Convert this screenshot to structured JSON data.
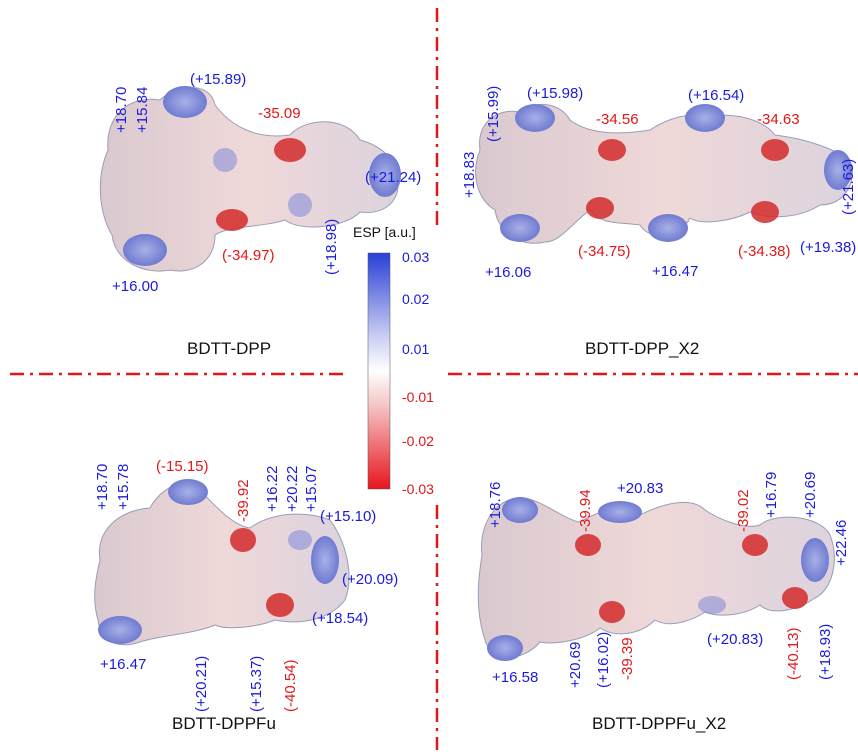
{
  "panels": [
    {
      "title": "BDTT-DPP",
      "labels": [
        "+18.70",
        "+15.84",
        "(+15.89)",
        "-35.09",
        "(+21.24)",
        "(+18.98)",
        "(-34.97)",
        "+16.00"
      ]
    },
    {
      "title": "BDTT-DPP_X2",
      "labels": [
        "+18.83",
        "(+15.99)",
        "(+15.98)",
        "-34.56",
        "(+16.54)",
        "-34.63",
        "(+21.63)",
        "(+19.38)",
        "(-34.38)",
        "+16.47",
        "(-34.75)",
        "+16.06"
      ]
    },
    {
      "title": "BDTT-DPPFu",
      "labels": [
        "+18.70",
        "+15.78",
        "(-15.15)",
        "-39.92",
        "+16.22",
        "+20.22",
        "+15.07",
        "(+15.10)",
        "(+20.09)",
        "(+18.54)",
        "(-40.54)",
        "(+15.37)",
        "(+20.21)",
        "+16.47"
      ]
    },
    {
      "title": "BDTT-DPPFu_X2",
      "labels": [
        "+18.76",
        "-39.94",
        "+20.83",
        "-39.02",
        "+16.79",
        "+20.69",
        "+22.46",
        "(+18.93)",
        "(-40.13)",
        "(+20.83)",
        "-39.39",
        "(+16.02)",
        "+20.69",
        "+16.58"
      ]
    }
  ],
  "colorbar": {
    "title": "ESP [a.u.]",
    "ticks": [
      "0.03",
      "0.02",
      "0.01",
      "-0.01",
      "-0.02",
      "-0.03"
    ],
    "colors": {
      "max": "#2a3fd6",
      "mid": "#ffffff",
      "min": "#e8141e"
    }
  },
  "colors": {
    "positive_label": "#1a1adb",
    "negative_label": "#e01818",
    "divider": "#e01818"
  }
}
